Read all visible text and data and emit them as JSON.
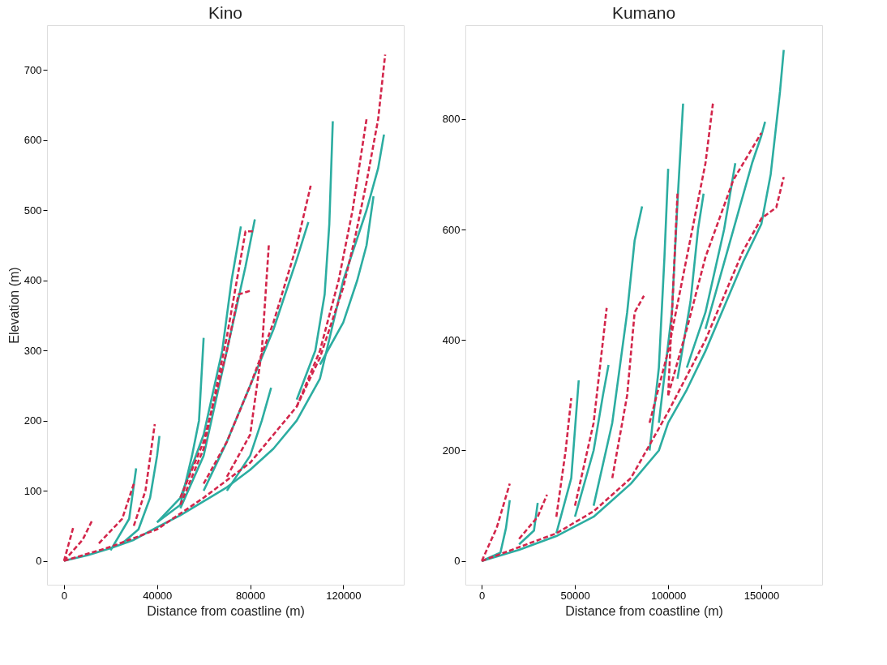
{
  "chart_data": [
    {
      "type": "line",
      "title": "Kino",
      "xlabel": "Distance from coastline (m)",
      "ylabel": "Elevation (m)",
      "xlim": [
        -7300,
        146000
      ],
      "ylim": [
        -34,
        764
      ],
      "xticks": [
        0,
        40000,
        80000,
        120000
      ],
      "yticks": [
        0,
        100,
        200,
        300,
        400,
        500,
        600,
        700
      ],
      "series": [
        {
          "color": "#2cada1",
          "line_style": "solid",
          "x": [
            0,
            10000,
            20000,
            30000,
            40000,
            50000,
            60000,
            70000,
            80000,
            90000,
            100000,
            110000,
            115000,
            120000,
            125000,
            130000,
            135000,
            137500
          ],
          "values": [
            0,
            8,
            18,
            30,
            48,
            65,
            85,
            105,
            130,
            160,
            200,
            260,
            330,
            400,
            450,
            500,
            560,
            608
          ]
        },
        {
          "color": "#2cada1",
          "line_style": "solid",
          "x": [
            100000,
            108000,
            112000,
            114000,
            115500
          ],
          "values": [
            230,
            300,
            380,
            480,
            627
          ]
        },
        {
          "color": "#2cada1",
          "line_style": "solid",
          "x": [
            40000,
            50000,
            55000,
            58000,
            60000
          ],
          "values": [
            55,
            80,
            150,
            200,
            318
          ]
        },
        {
          "color": "#2cada1",
          "line_style": "solid",
          "x": [
            40000,
            50000,
            60000,
            68000,
            72000,
            76000
          ],
          "values": [
            55,
            90,
            180,
            300,
            400,
            477
          ]
        },
        {
          "color": "#2cada1",
          "line_style": "solid",
          "x": [
            50000,
            60000,
            70000,
            78000,
            82000
          ],
          "values": [
            75,
            150,
            300,
            420,
            487
          ]
        },
        {
          "color": "#2cada1",
          "line_style": "solid",
          "x": [
            60000,
            70000,
            80000,
            90000,
            100000,
            105000
          ],
          "values": [
            100,
            170,
            250,
            330,
            430,
            483
          ]
        },
        {
          "color": "#2cada1",
          "line_style": "solid",
          "x": [
            25000,
            32000,
            37000,
            40000,
            41000
          ],
          "values": [
            25,
            45,
            90,
            150,
            178
          ]
        },
        {
          "color": "#2cada1",
          "line_style": "solid",
          "x": [
            20000,
            28000,
            31000
          ],
          "values": [
            15,
            60,
            132
          ]
        },
        {
          "color": "#2cada1",
          "line_style": "solid",
          "x": [
            70000,
            80000,
            85000,
            89000
          ],
          "values": [
            100,
            150,
            200,
            247
          ]
        },
        {
          "color": "#2cada1",
          "line_style": "solid",
          "x": [
            110000,
            120000,
            126000,
            130000,
            133000
          ],
          "values": [
            280,
            340,
            400,
            450,
            520
          ]
        },
        {
          "color": "#d3264b",
          "line_style": "dashed",
          "x": [
            0,
            20000,
            40000,
            60000,
            80000,
            100000,
            110000,
            120000,
            125000,
            130000,
            135000,
            138000
          ],
          "values": [
            0,
            20,
            45,
            90,
            140,
            220,
            290,
            390,
            460,
            540,
            630,
            722
          ]
        },
        {
          "color": "#d3264b",
          "line_style": "dashed",
          "x": [
            0,
            4000
          ],
          "values": [
            0,
            48
          ]
        },
        {
          "color": "#d3264b",
          "line_style": "dashed",
          "x": [
            0,
            8000,
            12000
          ],
          "values": [
            0,
            30,
            57
          ]
        },
        {
          "color": "#d3264b",
          "line_style": "dashed",
          "x": [
            50000,
            60000,
            70000,
            75000,
            80000
          ],
          "values": [
            90,
            170,
            300,
            380,
            385
          ]
        },
        {
          "color": "#d3264b",
          "line_style": "dashed",
          "x": [
            50000,
            60000,
            70000,
            78000,
            82000
          ],
          "values": [
            80,
            160,
            320,
            470,
            470
          ]
        },
        {
          "color": "#d3264b",
          "line_style": "dashed",
          "x": [
            60000,
            70000,
            80000,
            90000,
            100000,
            106000
          ],
          "values": [
            110,
            170,
            250,
            340,
            450,
            535
          ]
        },
        {
          "color": "#d3264b",
          "line_style": "dashed",
          "x": [
            70000,
            80000,
            85000,
            88000
          ],
          "values": [
            120,
            180,
            300,
            450
          ]
        },
        {
          "color": "#d3264b",
          "line_style": "dashed",
          "x": [
            30000,
            35000,
            39000
          ],
          "values": [
            50,
            100,
            195
          ]
        },
        {
          "color": "#d3264b",
          "line_style": "dashed",
          "x": [
            100000,
            110000,
            118000,
            124000,
            130000
          ],
          "values": [
            220,
            300,
            400,
            500,
            630
          ]
        },
        {
          "color": "#d3264b",
          "line_style": "dashed",
          "x": [
            15000,
            25000,
            30000
          ],
          "values": [
            25,
            60,
            110
          ]
        }
      ]
    },
    {
      "type": "line",
      "title": "Kumano",
      "xlabel": "Distance from coastline (m)",
      "xlim": [
        -8800,
        182600
      ],
      "ylim": [
        -43,
        970
      ],
      "xticks": [
        0,
        50000,
        100000,
        150000
      ],
      "yticks": [
        0,
        200,
        400,
        600,
        800
      ],
      "series": [
        {
          "color": "#2cada1",
          "line_style": "solid",
          "x": [
            0,
            20000,
            40000,
            60000,
            80000,
            95000,
            100000,
            110000,
            120000,
            130000,
            140000,
            150000,
            155000,
            160000,
            162000
          ],
          "values": [
            0,
            20,
            45,
            80,
            140,
            200,
            250,
            310,
            380,
            460,
            540,
            610,
            700,
            850,
            925
          ]
        },
        {
          "color": "#2cada1",
          "line_style": "solid",
          "x": [
            0,
            10000,
            13000,
            15000
          ],
          "values": [
            0,
            15,
            60,
            110
          ]
        },
        {
          "color": "#2cada1",
          "line_style": "solid",
          "x": [
            20000,
            28000,
            30000
          ],
          "values": [
            30,
            55,
            105
          ]
        },
        {
          "color": "#2cada1",
          "line_style": "solid",
          "x": [
            40000,
            48000,
            52000
          ],
          "values": [
            50,
            150,
            327
          ]
        },
        {
          "color": "#2cada1",
          "line_style": "solid",
          "x": [
            50000,
            60000,
            65000,
            68000
          ],
          "values": [
            80,
            200,
            300,
            355
          ]
        },
        {
          "color": "#2cada1",
          "line_style": "solid",
          "x": [
            60000,
            70000,
            78000,
            82000,
            86000
          ],
          "values": [
            100,
            250,
            450,
            580,
            642
          ]
        },
        {
          "color": "#2cada1",
          "line_style": "solid",
          "x": [
            90000,
            95000,
            98000,
            100000
          ],
          "values": [
            200,
            350,
            550,
            710
          ]
        },
        {
          "color": "#2cada1",
          "line_style": "solid",
          "x": [
            95000,
            102000,
            105000,
            108000
          ],
          "values": [
            250,
            450,
            650,
            828
          ]
        },
        {
          "color": "#2cada1",
          "line_style": "solid",
          "x": [
            110000,
            120000,
            130000,
            136000
          ],
          "values": [
            350,
            450,
            600,
            720
          ]
        },
        {
          "color": "#2cada1",
          "line_style": "solid",
          "x": [
            120000,
            135000,
            145000,
            150000,
            152000
          ],
          "values": [
            420,
            600,
            720,
            770,
            795
          ]
        },
        {
          "color": "#2cada1",
          "line_style": "solid",
          "x": [
            105000,
            112000,
            116000,
            119000
          ],
          "values": [
            330,
            470,
            600,
            665
          ]
        },
        {
          "color": "#d3264b",
          "line_style": "dashed",
          "x": [
            0,
            20000,
            40000,
            60000,
            80000,
            100000,
            120000,
            140000,
            150000,
            158000,
            162000
          ],
          "values": [
            0,
            25,
            50,
            90,
            150,
            270,
            400,
            560,
            620,
            640,
            695
          ]
        },
        {
          "color": "#d3264b",
          "line_style": "dashed",
          "x": [
            0,
            8000,
            15000
          ],
          "values": [
            0,
            60,
            140
          ]
        },
        {
          "color": "#d3264b",
          "line_style": "dashed",
          "x": [
            40000,
            45000,
            48000
          ],
          "values": [
            80,
            200,
            295
          ]
        },
        {
          "color": "#d3264b",
          "line_style": "dashed",
          "x": [
            50000,
            60000,
            67000
          ],
          "values": [
            100,
            250,
            458
          ]
        },
        {
          "color": "#d3264b",
          "line_style": "dashed",
          "x": [
            70000,
            78000,
            82000,
            87000
          ],
          "values": [
            150,
            300,
            450,
            480
          ]
        },
        {
          "color": "#d3264b",
          "line_style": "dashed",
          "x": [
            90000,
            100000,
            110000,
            120000,
            124000
          ],
          "values": [
            250,
            380,
            550,
            720,
            828
          ]
        },
        {
          "color": "#d3264b",
          "line_style": "dashed",
          "x": [
            100000,
            110000,
            120000,
            135000,
            150000
          ],
          "values": [
            300,
            420,
            550,
            690,
            775
          ]
        },
        {
          "color": "#d3264b",
          "line_style": "dashed",
          "x": [
            100000,
            105000
          ],
          "values": [
            300,
            665
          ]
        },
        {
          "color": "#d3264b",
          "line_style": "dashed",
          "x": [
            20000,
            30000,
            35000
          ],
          "values": [
            40,
            80,
            120
          ]
        }
      ]
    }
  ]
}
